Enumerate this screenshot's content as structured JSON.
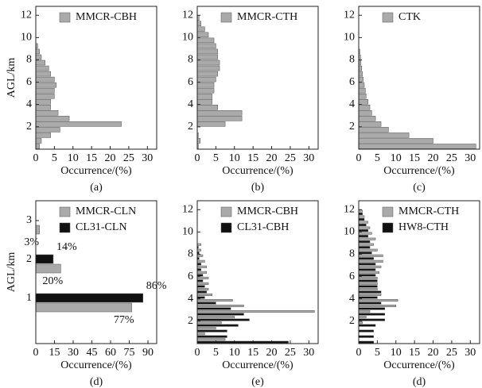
{
  "chart_data": [
    {
      "type": "histogram",
      "orientation": "horizontal",
      "caption": "(a)",
      "ylabel": "AGL/km",
      "xlabel": "Occurrence/(%)",
      "bins": [
        0,
        0.5,
        1,
        1.5,
        2,
        2.5,
        3,
        3.5,
        4,
        4.5,
        5,
        5.5,
        6,
        6.5,
        7,
        7.5,
        8,
        8.5,
        9,
        9.5
      ],
      "series": [
        {
          "name": "MMCR-CBH",
          "color": "#aaaaaa",
          "values": [
            1,
            1.5,
            4,
            6.5,
            23,
            9,
            6,
            4,
            4,
            5,
            5,
            5.5,
            5,
            4,
            3.5,
            2.5,
            1.5,
            1,
            0.5
          ]
        }
      ],
      "xlim": [
        0,
        32.5
      ],
      "xticks": [
        0,
        5,
        10,
        15,
        20,
        25,
        30
      ],
      "ylim": [
        0,
        12.8
      ],
      "yticks": [
        2,
        4,
        6,
        8,
        10,
        12
      ]
    },
    {
      "type": "histogram",
      "orientation": "horizontal",
      "caption": "(b)",
      "xlabel": "Occurrence/(%)",
      "bins": [
        0,
        0.5,
        1,
        1.5,
        2,
        2.5,
        3,
        3.5,
        4,
        4.5,
        5,
        5.5,
        6,
        6.5,
        7,
        7.5,
        8,
        8.5,
        9,
        9.5,
        10,
        10.5,
        11,
        11.5,
        12
      ],
      "series": [
        {
          "name": "MMCR-CTH",
          "color": "#aaaaaa",
          "values": [
            0.3,
            0.8,
            0.3,
            0,
            7.5,
            12,
            12,
            5.5,
            4,
            4,
            4.5,
            4.5,
            5,
            5.5,
            6,
            6,
            5.5,
            5.5,
            5,
            4.5,
            3,
            2,
            1,
            0.5
          ]
        }
      ],
      "xlim": [
        0,
        32.5
      ],
      "xticks": [
        0,
        5,
        10,
        15,
        20,
        25,
        30
      ],
      "ylim": [
        0,
        12.8
      ],
      "yticks": [
        2,
        4,
        6,
        8,
        10,
        12
      ]
    },
    {
      "type": "histogram",
      "orientation": "horizontal",
      "caption": "(c)",
      "xlabel": "Occurrence/(%)",
      "bins": [
        0,
        0.5,
        1,
        1.5,
        2,
        2.5,
        3,
        3.5,
        4,
        4.5,
        5,
        5.5,
        6,
        6.5,
        7,
        7.5,
        8,
        8.5,
        9
      ],
      "series": [
        {
          "name": "CTK",
          "color": "#aaaaaa",
          "values": [
            31.5,
            20,
            13.5,
            8,
            6,
            4.5,
            3.5,
            3,
            2.5,
            2,
            1.8,
            1.5,
            1.2,
            1,
            0.8,
            0.6,
            0.5,
            0.3
          ]
        }
      ],
      "xlim": [
        0,
        32.5
      ],
      "xticks": [
        0,
        5,
        10,
        15,
        20,
        25,
        30
      ],
      "ylim": [
        0,
        12.8
      ],
      "yticks": [
        2,
        4,
        6,
        8,
        10,
        12
      ]
    },
    {
      "type": "bar",
      "orientation": "horizontal",
      "caption": "(d)",
      "ylabel": "AGL/km",
      "xlabel": "Occurrence/(%)",
      "categories": [
        "1",
        "2",
        "3"
      ],
      "series": [
        {
          "name": "MMCR-CLN",
          "color": "#aaaaaa",
          "values": [
            77,
            20,
            3
          ],
          "value_labels": [
            "77%",
            "20%",
            "3%"
          ]
        },
        {
          "name": "CL31-CLN",
          "color": "#111111",
          "values": [
            86,
            14,
            null
          ],
          "value_labels": [
            "86%",
            "14%",
            null
          ]
        }
      ],
      "xlim": [
        0,
        97
      ],
      "xticks": [
        0,
        15,
        30,
        45,
        60,
        75,
        90
      ]
    },
    {
      "type": "histogram",
      "orientation": "horizontal",
      "caption": "(e)",
      "xlabel": "Occurrence/(%)",
      "bins": [
        0,
        0.5,
        1,
        1.5,
        2,
        2.5,
        3,
        3.5,
        4,
        4.5,
        5,
        5.5,
        6,
        6.5,
        7,
        7.5,
        8,
        8.5,
        9
      ],
      "series": [
        {
          "name": "MMCR-CBH",
          "color": "#aaaaaa",
          "values": [
            7.5,
            2,
            5,
            6.5,
            10,
            31.5,
            12.5,
            9.5,
            4,
            3,
            3,
            3,
            2.5,
            2.5,
            2,
            1.5,
            1,
            1
          ]
        },
        {
          "name": "CL31-CBH",
          "color": "#111111",
          "values": [
            24.5,
            8,
            8,
            11,
            14,
            12.5,
            9,
            5,
            2,
            2.5,
            2,
            1.5,
            1.5,
            1,
            1,
            0.5,
            0.5,
            0.3
          ]
        }
      ],
      "xlim": [
        0,
        32.5
      ],
      "xticks": [
        0,
        5,
        10,
        15,
        20,
        25,
        30
      ],
      "ylim": [
        0,
        12.8
      ],
      "yticks": [
        2,
        4,
        6,
        8,
        10,
        12
      ]
    },
    {
      "type": "histogram",
      "orientation": "horizontal",
      "caption": "(d)",
      "xlabel": "Occurrence/(%)",
      "bins": [
        0,
        0.5,
        1,
        1.5,
        2,
        2.5,
        3,
        3.5,
        4,
        4.5,
        5,
        5.5,
        6,
        6.5,
        7,
        7.5,
        8,
        8.5,
        9,
        9.5,
        10,
        10.5,
        11,
        11.5,
        12
      ],
      "series": [
        {
          "name": "MMCR-CTH",
          "color": "#aaaaaa",
          "values": [
            0,
            0,
            0,
            1,
            2,
            3,
            10,
            10.5,
            6,
            5,
            5,
            5,
            5.5,
            6,
            6.5,
            6.5,
            5,
            4,
            4.5,
            3.5,
            3,
            2.5,
            1.5,
            1
          ]
        },
        {
          "name": "HW8-CTH",
          "color": "#111111",
          "values": [
            4,
            4,
            4,
            4.5,
            7,
            7,
            7,
            6,
            5,
            6,
            5,
            5,
            4.5,
            4.5,
            4.5,
            4,
            3.5,
            3,
            3,
            2.5,
            2.5,
            2,
            1.5,
            1
          ]
        }
      ],
      "xlim": [
        0,
        32.5
      ],
      "xticks": [
        0,
        5,
        10,
        15,
        20,
        25,
        30
      ],
      "ylim": [
        0,
        12.8
      ],
      "yticks": [
        2,
        4,
        6,
        8,
        10,
        12
      ]
    }
  ]
}
